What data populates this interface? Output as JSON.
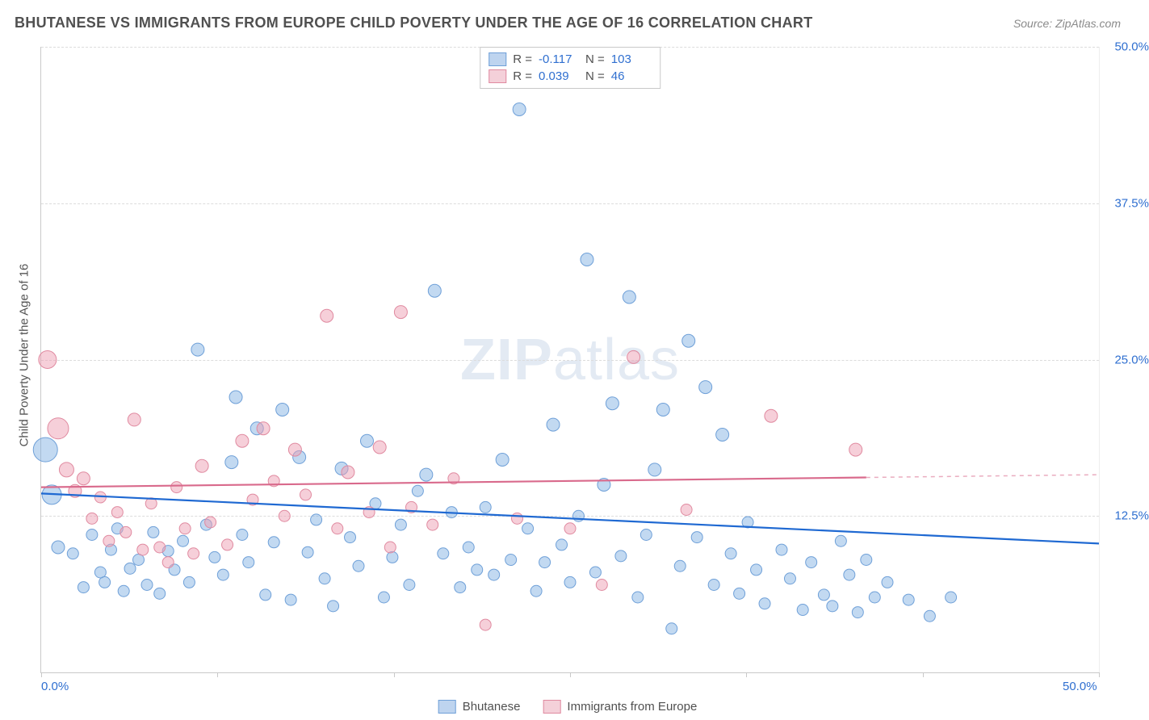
{
  "title": "BHUTANESE VS IMMIGRANTS FROM EUROPE CHILD POVERTY UNDER THE AGE OF 16 CORRELATION CHART",
  "source": "Source: ZipAtlas.com",
  "y_axis_label": "Child Poverty Under the Age of 16",
  "watermark_a": "ZIP",
  "watermark_b": "atlas",
  "chart": {
    "type": "scatter-correlation",
    "xlim": [
      0,
      50
    ],
    "ylim": [
      0,
      50
    ],
    "x_ticks": [
      0,
      8.33,
      16.67,
      25,
      33.33,
      41.67,
      50
    ],
    "x_tick_labels": [
      "0.0%",
      "",
      "",
      "",
      "",
      "",
      "50.0%"
    ],
    "y_ticks": [
      12.5,
      25.0,
      37.5,
      50.0
    ],
    "y_tick_labels": [
      "12.5%",
      "25.0%",
      "37.5%",
      "50.0%"
    ],
    "grid_dashed_color": "#dcdcdc",
    "background": "#ffffff",
    "series": [
      {
        "key": "bhutanese",
        "label": "Bhutanese",
        "color_fill": "rgba(120,170,225,0.45)",
        "color_stroke": "#6fa0d8",
        "r_value": "-0.117",
        "n_value": "103",
        "trend": {
          "y_at_x0": 14.3,
          "y_at_x50": 10.3,
          "solid_until_x": 50,
          "color": "#1f69d2",
          "width": 2.2
        },
        "points": [
          {
            "x": 0.2,
            "y": 17.8,
            "r": 15
          },
          {
            "x": 0.5,
            "y": 14.2,
            "r": 12
          },
          {
            "x": 0.8,
            "y": 10.0,
            "r": 8
          },
          {
            "x": 1.5,
            "y": 9.5,
            "r": 7
          },
          {
            "x": 2.0,
            "y": 6.8,
            "r": 7
          },
          {
            "x": 2.4,
            "y": 11.0,
            "r": 7
          },
          {
            "x": 2.8,
            "y": 8.0,
            "r": 7
          },
          {
            "x": 3.0,
            "y": 7.2,
            "r": 7
          },
          {
            "x": 3.3,
            "y": 9.8,
            "r": 7
          },
          {
            "x": 3.6,
            "y": 11.5,
            "r": 7
          },
          {
            "x": 3.9,
            "y": 6.5,
            "r": 7
          },
          {
            "x": 4.2,
            "y": 8.3,
            "r": 7
          },
          {
            "x": 4.6,
            "y": 9.0,
            "r": 7
          },
          {
            "x": 5.0,
            "y": 7.0,
            "r": 7
          },
          {
            "x": 5.3,
            "y": 11.2,
            "r": 7
          },
          {
            "x": 5.6,
            "y": 6.3,
            "r": 7
          },
          {
            "x": 6.0,
            "y": 9.7,
            "r": 7
          },
          {
            "x": 6.3,
            "y": 8.2,
            "r": 7
          },
          {
            "x": 6.7,
            "y": 10.5,
            "r": 7
          },
          {
            "x": 7.0,
            "y": 7.2,
            "r": 7
          },
          {
            "x": 7.4,
            "y": 25.8,
            "r": 8
          },
          {
            "x": 7.8,
            "y": 11.8,
            "r": 7
          },
          {
            "x": 8.2,
            "y": 9.2,
            "r": 7
          },
          {
            "x": 8.6,
            "y": 7.8,
            "r": 7
          },
          {
            "x": 9.0,
            "y": 16.8,
            "r": 8
          },
          {
            "x": 9.2,
            "y": 22.0,
            "r": 8
          },
          {
            "x": 9.5,
            "y": 11.0,
            "r": 7
          },
          {
            "x": 9.8,
            "y": 8.8,
            "r": 7
          },
          {
            "x": 10.2,
            "y": 19.5,
            "r": 8
          },
          {
            "x": 10.6,
            "y": 6.2,
            "r": 7
          },
          {
            "x": 11.0,
            "y": 10.4,
            "r": 7
          },
          {
            "x": 11.4,
            "y": 21.0,
            "r": 8
          },
          {
            "x": 11.8,
            "y": 5.8,
            "r": 7
          },
          {
            "x": 12.2,
            "y": 17.2,
            "r": 8
          },
          {
            "x": 12.6,
            "y": 9.6,
            "r": 7
          },
          {
            "x": 13.0,
            "y": 12.2,
            "r": 7
          },
          {
            "x": 13.4,
            "y": 7.5,
            "r": 7
          },
          {
            "x": 13.8,
            "y": 5.3,
            "r": 7
          },
          {
            "x": 14.2,
            "y": 16.3,
            "r": 8
          },
          {
            "x": 14.6,
            "y": 10.8,
            "r": 7
          },
          {
            "x": 15.0,
            "y": 8.5,
            "r": 7
          },
          {
            "x": 15.4,
            "y": 18.5,
            "r": 8
          },
          {
            "x": 15.8,
            "y": 13.5,
            "r": 7
          },
          {
            "x": 16.2,
            "y": 6.0,
            "r": 7
          },
          {
            "x": 16.6,
            "y": 9.2,
            "r": 7
          },
          {
            "x": 17.0,
            "y": 11.8,
            "r": 7
          },
          {
            "x": 17.4,
            "y": 7.0,
            "r": 7
          },
          {
            "x": 17.8,
            "y": 14.5,
            "r": 7
          },
          {
            "x": 18.2,
            "y": 15.8,
            "r": 8
          },
          {
            "x": 18.6,
            "y": 30.5,
            "r": 8
          },
          {
            "x": 19.0,
            "y": 9.5,
            "r": 7
          },
          {
            "x": 19.4,
            "y": 12.8,
            "r": 7
          },
          {
            "x": 19.8,
            "y": 6.8,
            "r": 7
          },
          {
            "x": 20.2,
            "y": 10.0,
            "r": 7
          },
          {
            "x": 20.6,
            "y": 8.2,
            "r": 7
          },
          {
            "x": 21.0,
            "y": 13.2,
            "r": 7
          },
          {
            "x": 21.4,
            "y": 7.8,
            "r": 7
          },
          {
            "x": 21.8,
            "y": 17.0,
            "r": 8
          },
          {
            "x": 22.2,
            "y": 9.0,
            "r": 7
          },
          {
            "x": 22.6,
            "y": 45.0,
            "r": 8
          },
          {
            "x": 23.0,
            "y": 11.5,
            "r": 7
          },
          {
            "x": 23.4,
            "y": 6.5,
            "r": 7
          },
          {
            "x": 23.8,
            "y": 8.8,
            "r": 7
          },
          {
            "x": 24.2,
            "y": 19.8,
            "r": 8
          },
          {
            "x": 24.6,
            "y": 10.2,
            "r": 7
          },
          {
            "x": 25.0,
            "y": 7.2,
            "r": 7
          },
          {
            "x": 25.4,
            "y": 12.5,
            "r": 7
          },
          {
            "x": 25.8,
            "y": 33.0,
            "r": 8
          },
          {
            "x": 26.2,
            "y": 8.0,
            "r": 7
          },
          {
            "x": 26.6,
            "y": 15.0,
            "r": 8
          },
          {
            "x": 27.0,
            "y": 21.5,
            "r": 8
          },
          {
            "x": 27.4,
            "y": 9.3,
            "r": 7
          },
          {
            "x": 27.8,
            "y": 30.0,
            "r": 8
          },
          {
            "x": 28.2,
            "y": 6.0,
            "r": 7
          },
          {
            "x": 28.6,
            "y": 11.0,
            "r": 7
          },
          {
            "x": 29.0,
            "y": 16.2,
            "r": 8
          },
          {
            "x": 29.4,
            "y": 21.0,
            "r": 8
          },
          {
            "x": 29.8,
            "y": 3.5,
            "r": 7
          },
          {
            "x": 30.2,
            "y": 8.5,
            "r": 7
          },
          {
            "x": 30.6,
            "y": 26.5,
            "r": 8
          },
          {
            "x": 31.0,
            "y": 10.8,
            "r": 7
          },
          {
            "x": 31.4,
            "y": 22.8,
            "r": 8
          },
          {
            "x": 31.8,
            "y": 7.0,
            "r": 7
          },
          {
            "x": 32.2,
            "y": 19.0,
            "r": 8
          },
          {
            "x": 32.6,
            "y": 9.5,
            "r": 7
          },
          {
            "x": 33.0,
            "y": 6.3,
            "r": 7
          },
          {
            "x": 33.4,
            "y": 12.0,
            "r": 7
          },
          {
            "x": 33.8,
            "y": 8.2,
            "r": 7
          },
          {
            "x": 34.2,
            "y": 5.5,
            "r": 7
          },
          {
            "x": 35.0,
            "y": 9.8,
            "r": 7
          },
          {
            "x": 35.4,
            "y": 7.5,
            "r": 7
          },
          {
            "x": 36.0,
            "y": 5.0,
            "r": 7
          },
          {
            "x": 36.4,
            "y": 8.8,
            "r": 7
          },
          {
            "x": 37.0,
            "y": 6.2,
            "r": 7
          },
          {
            "x": 37.4,
            "y": 5.3,
            "r": 7
          },
          {
            "x": 37.8,
            "y": 10.5,
            "r": 7
          },
          {
            "x": 38.2,
            "y": 7.8,
            "r": 7
          },
          {
            "x": 38.6,
            "y": 4.8,
            "r": 7
          },
          {
            "x": 39.0,
            "y": 9.0,
            "r": 7
          },
          {
            "x": 39.4,
            "y": 6.0,
            "r": 7
          },
          {
            "x": 40.0,
            "y": 7.2,
            "r": 7
          },
          {
            "x": 41.0,
            "y": 5.8,
            "r": 7
          },
          {
            "x": 42.0,
            "y": 4.5,
            "r": 7
          },
          {
            "x": 43.0,
            "y": 6.0,
            "r": 7
          }
        ]
      },
      {
        "key": "europe",
        "label": "Immigrants from Europe",
        "color_fill": "rgba(238,160,180,0.5)",
        "color_stroke": "#e08aa0",
        "r_value": "0.039",
        "n_value": "46",
        "trend": {
          "y_at_x0": 14.8,
          "y_at_x50": 15.8,
          "solid_until_x": 39,
          "color": "#d96a8c",
          "width": 2.2
        },
        "points": [
          {
            "x": 0.3,
            "y": 25.0,
            "r": 11
          },
          {
            "x": 0.8,
            "y": 19.5,
            "r": 13
          },
          {
            "x": 1.2,
            "y": 16.2,
            "r": 9
          },
          {
            "x": 1.6,
            "y": 14.5,
            "r": 8
          },
          {
            "x": 2.0,
            "y": 15.5,
            "r": 8
          },
          {
            "x": 2.4,
            "y": 12.3,
            "r": 7
          },
          {
            "x": 2.8,
            "y": 14.0,
            "r": 7
          },
          {
            "x": 3.2,
            "y": 10.5,
            "r": 7
          },
          {
            "x": 3.6,
            "y": 12.8,
            "r": 7
          },
          {
            "x": 4.0,
            "y": 11.2,
            "r": 7
          },
          {
            "x": 4.4,
            "y": 20.2,
            "r": 8
          },
          {
            "x": 4.8,
            "y": 9.8,
            "r": 7
          },
          {
            "x": 5.2,
            "y": 13.5,
            "r": 7
          },
          {
            "x": 5.6,
            "y": 10.0,
            "r": 7
          },
          {
            "x": 6.0,
            "y": 8.8,
            "r": 7
          },
          {
            "x": 6.4,
            "y": 14.8,
            "r": 7
          },
          {
            "x": 6.8,
            "y": 11.5,
            "r": 7
          },
          {
            "x": 7.2,
            "y": 9.5,
            "r": 7
          },
          {
            "x": 7.6,
            "y": 16.5,
            "r": 8
          },
          {
            "x": 8.0,
            "y": 12.0,
            "r": 7
          },
          {
            "x": 8.8,
            "y": 10.2,
            "r": 7
          },
          {
            "x": 9.5,
            "y": 18.5,
            "r": 8
          },
          {
            "x": 10.0,
            "y": 13.8,
            "r": 7
          },
          {
            "x": 10.5,
            "y": 19.5,
            "r": 8
          },
          {
            "x": 11.0,
            "y": 15.3,
            "r": 7
          },
          {
            "x": 11.5,
            "y": 12.5,
            "r": 7
          },
          {
            "x": 12.0,
            "y": 17.8,
            "r": 8
          },
          {
            "x": 12.5,
            "y": 14.2,
            "r": 7
          },
          {
            "x": 13.5,
            "y": 28.5,
            "r": 8
          },
          {
            "x": 14.0,
            "y": 11.5,
            "r": 7
          },
          {
            "x": 14.5,
            "y": 16.0,
            "r": 8
          },
          {
            "x": 15.5,
            "y": 12.8,
            "r": 7
          },
          {
            "x": 16.0,
            "y": 18.0,
            "r": 8
          },
          {
            "x": 16.5,
            "y": 10.0,
            "r": 7
          },
          {
            "x": 17.0,
            "y": 28.8,
            "r": 8
          },
          {
            "x": 17.5,
            "y": 13.2,
            "r": 7
          },
          {
            "x": 18.5,
            "y": 11.8,
            "r": 7
          },
          {
            "x": 19.5,
            "y": 15.5,
            "r": 7
          },
          {
            "x": 21.0,
            "y": 3.8,
            "r": 7
          },
          {
            "x": 22.5,
            "y": 12.3,
            "r": 7
          },
          {
            "x": 25.0,
            "y": 11.5,
            "r": 7
          },
          {
            "x": 26.5,
            "y": 7.0,
            "r": 7
          },
          {
            "x": 28.0,
            "y": 25.2,
            "r": 8
          },
          {
            "x": 30.5,
            "y": 13.0,
            "r": 7
          },
          {
            "x": 34.5,
            "y": 20.5,
            "r": 8
          },
          {
            "x": 38.5,
            "y": 17.8,
            "r": 8
          }
        ]
      }
    ]
  },
  "stats_legend": {
    "r_label": "R =",
    "n_label": "N ="
  }
}
